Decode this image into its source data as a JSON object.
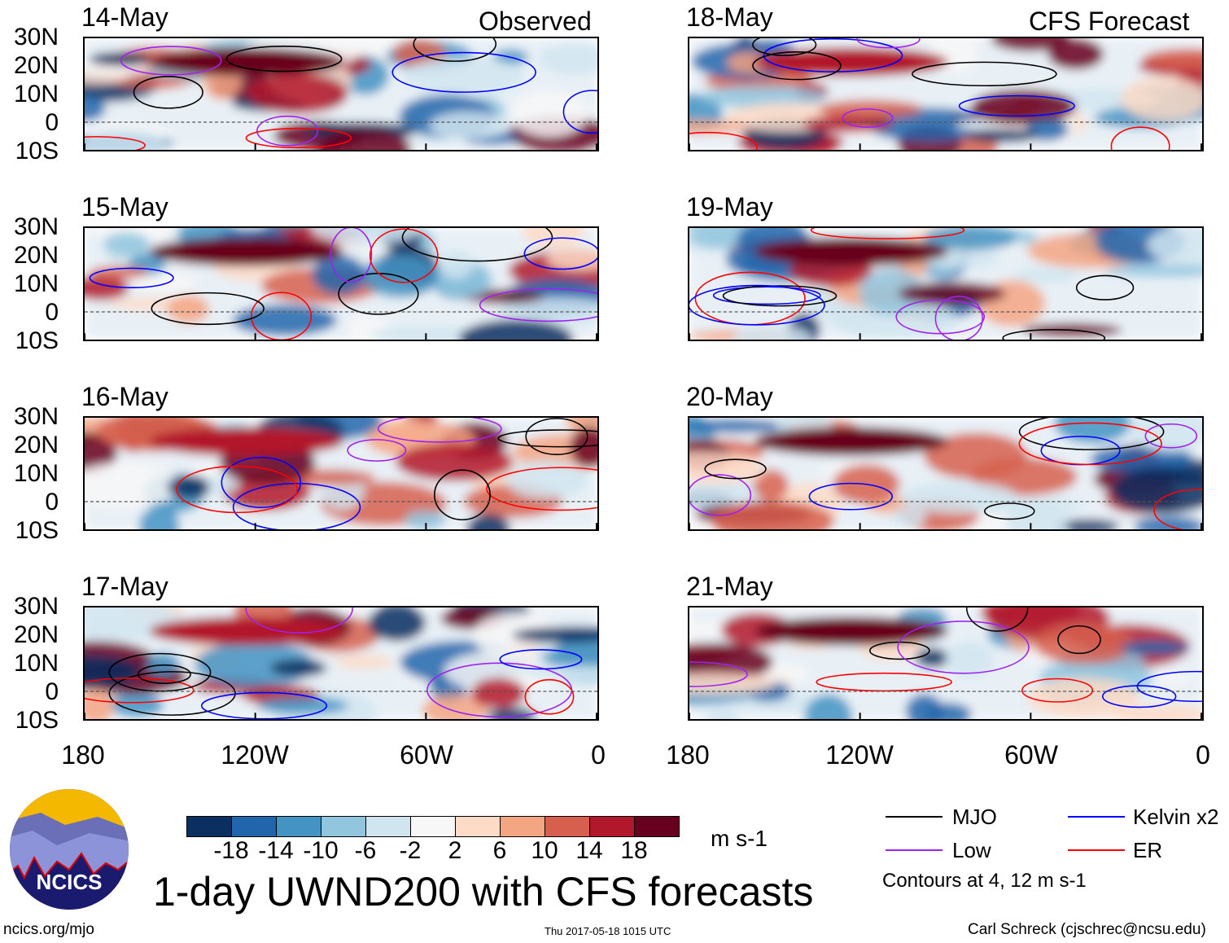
{
  "header": {
    "observed_label": "Observed",
    "forecast_label": "CFS Forecast"
  },
  "panels": {
    "left": [
      "14-May",
      "15-May",
      "16-May",
      "17-May"
    ],
    "right": [
      "18-May",
      "19-May",
      "20-May",
      "21-May"
    ]
  },
  "axes": {
    "lat_labels": [
      "30N",
      "20N",
      "10N",
      "0",
      "10S"
    ],
    "lon_labels": [
      "180",
      "120W",
      "60W",
      "0"
    ]
  },
  "colorbar": {
    "colors": [
      "#0b2f60",
      "#2166ac",
      "#4393c3",
      "#92c5de",
      "#d1e5f0",
      "#f7f7f7",
      "#fddbc7",
      "#f4a582",
      "#d6604d",
      "#b2182b",
      "#67001f"
    ],
    "ticks": [
      "-18",
      "-14",
      "-10",
      "-6",
      "-2",
      "2",
      "6",
      "10",
      "14",
      "18"
    ],
    "units": "m s-1"
  },
  "legend": {
    "items": [
      {
        "label": "MJO",
        "color": "#000000"
      },
      {
        "label": "Kelvin x2",
        "color": "#0000ff"
      },
      {
        "label": "Low",
        "color": "#a020f0"
      },
      {
        "label": "ER",
        "color": "#ff0000"
      }
    ],
    "contours_note": "Contours at 4, 12 m s-1"
  },
  "footer": {
    "title": "1-day UWND200 with CFS forecasts",
    "left": "ncics.org/mjo",
    "center": "Thu 2017-05-18 1015 UTC",
    "right": "Carl Schreck (cjschrec@ncsu.edu)",
    "logo_text": "NCICS"
  }
}
